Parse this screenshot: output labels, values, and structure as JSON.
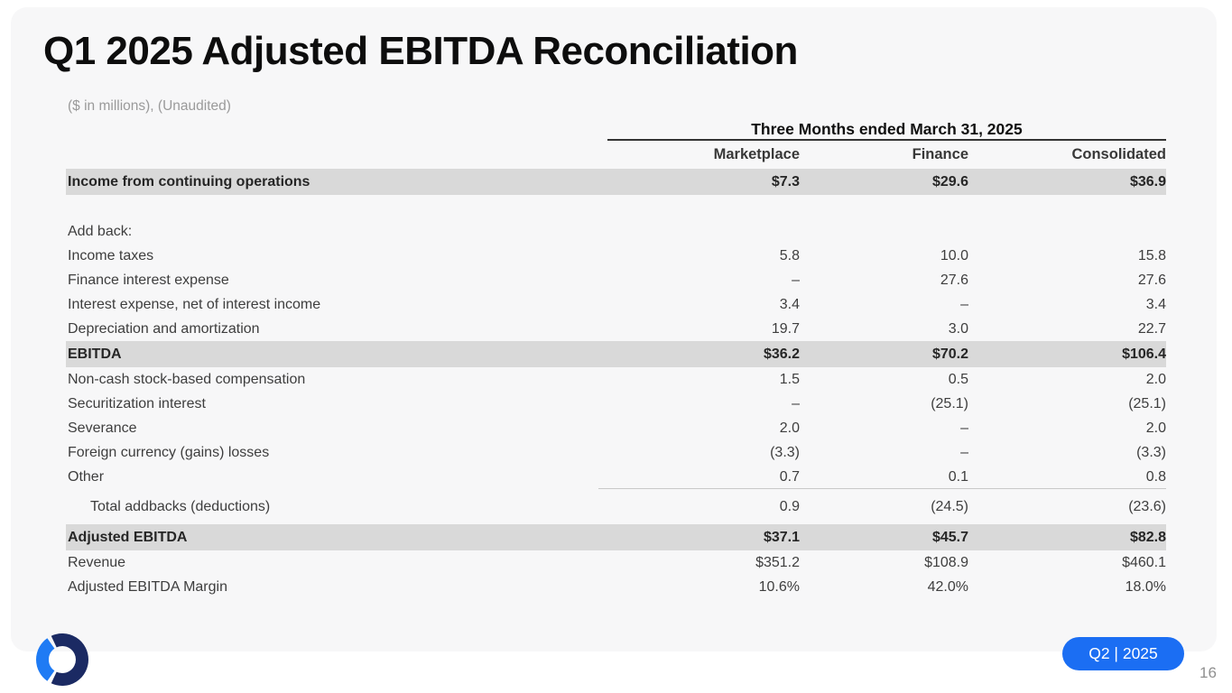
{
  "slide": {
    "title": "Q1 2025 Adjusted EBITDA Reconciliation",
    "subtitle": "($ in millions), (Unaudited)",
    "badge": "Q2 | 2025",
    "page_number": "16",
    "logo": "ring-logo"
  },
  "table": {
    "period_header": "Three Months ended March 31, 2025",
    "columns": [
      "Marketplace",
      "Finance",
      "Consolidated"
    ],
    "rows": [
      {
        "label": "Income from continuing operations",
        "values": [
          "$7.3",
          "$29.6",
          "$36.9"
        ],
        "band": true
      },
      {
        "label": "",
        "values": [
          "",
          "",
          ""
        ],
        "blank": true
      },
      {
        "label": "Add back:",
        "values": [
          "",
          "",
          ""
        ]
      },
      {
        "label": "Income taxes",
        "values": [
          "5.8",
          "10.0",
          "15.8"
        ]
      },
      {
        "label": "Finance interest expense",
        "values": [
          "–",
          "27.6",
          "27.6"
        ]
      },
      {
        "label": "Interest expense, net of interest income",
        "values": [
          "3.4",
          "–",
          "3.4"
        ]
      },
      {
        "label": "Depreciation and amortization",
        "values": [
          "19.7",
          "3.0",
          "22.7"
        ]
      },
      {
        "label": "EBITDA",
        "values": [
          "$36.2",
          "$70.2",
          "$106.4"
        ],
        "band": true
      },
      {
        "label": "Non-cash stock-based compensation",
        "values": [
          "1.5",
          "0.5",
          "2.0"
        ]
      },
      {
        "label": "Securitization interest",
        "values": [
          "–",
          "(25.1)",
          "(25.1)"
        ]
      },
      {
        "label": "Severance",
        "values": [
          "2.0",
          "–",
          "2.0"
        ]
      },
      {
        "label": "Foreign currency (gains) losses",
        "values": [
          "(3.3)",
          "–",
          "(3.3)"
        ]
      },
      {
        "label": "Other",
        "values": [
          "0.7",
          "0.1",
          "0.8"
        ],
        "rule_below": true
      },
      {
        "label": "Total addbacks (deductions)",
        "values": [
          "0.9",
          "(24.5)",
          "(23.6)"
        ],
        "indent": true,
        "gap_before": true
      },
      {
        "label": "Adjusted EBITDA",
        "values": [
          "$37.1",
          "$45.7",
          "$82.8"
        ],
        "band": true,
        "gap_before": true
      },
      {
        "label": "Revenue",
        "values": [
          "$351.2",
          "$108.9",
          "$460.1"
        ]
      },
      {
        "label": "Adjusted EBITDA Margin",
        "values": [
          "10.6%",
          "42.0%",
          "18.0%"
        ]
      }
    ]
  },
  "colors": {
    "slide_background": "#f7f7f8",
    "highlight_row": "#d9d9d9",
    "accent_blue": "#1b6ef3",
    "logo_navy": "#1b2a63",
    "logo_blue": "#1f7bf4"
  }
}
